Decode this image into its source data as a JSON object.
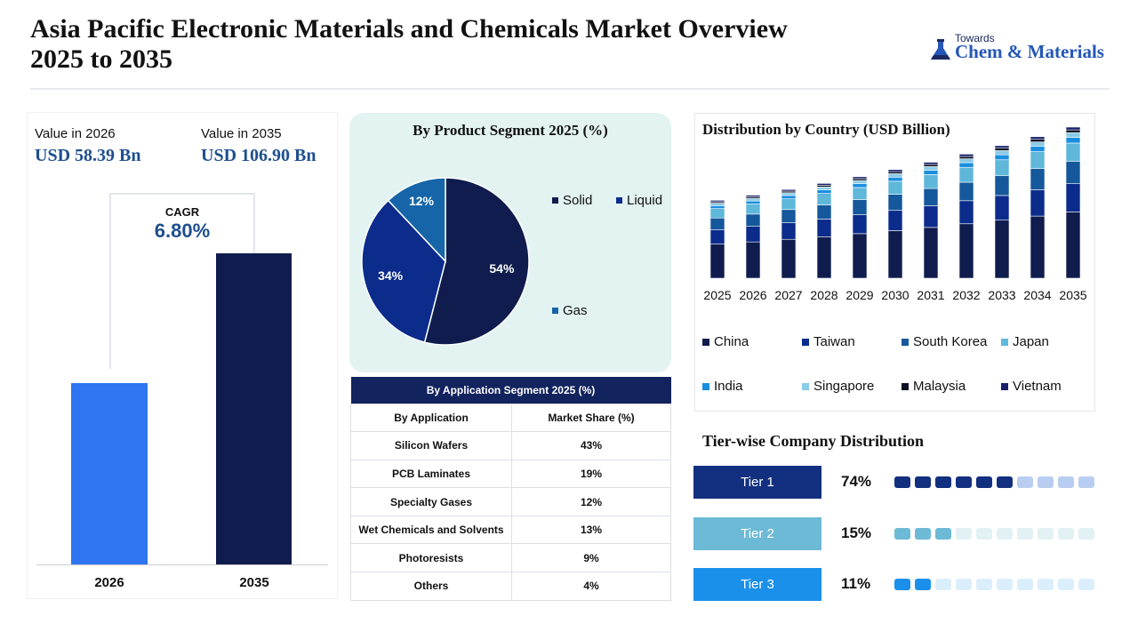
{
  "header": {
    "title_line1": "Asia Pacific Electronic Materials and Chemicals Market Overview",
    "title_line2": "2025 to 2035",
    "logo_small": "Towards",
    "logo_big": "Chem & Materials"
  },
  "value_panel": {
    "label_2026": "Value in 2026",
    "amount_2026": "USD 58.39 Bn",
    "label_2035": "Value in 2035",
    "amount_2035": "USD 106.90 Bn",
    "cagr_label": "CAGR",
    "cagr_value": "6.80%",
    "year_a": "2026",
    "year_b": "2035"
  },
  "product_panel": {
    "title": "By Product Segment 2025 (%)"
  },
  "application_table": {
    "title": "By Application Segment 2025 (%)",
    "col_app": "By Application",
    "col_share": "Market Share (%)",
    "rows": [
      {
        "app": "Silicon Wafers",
        "share": "43%"
      },
      {
        "app": "PCB Laminates",
        "share": "19%"
      },
      {
        "app": "Specialty Gases",
        "share": "12%"
      },
      {
        "app": "Wet Chemicals and Solvents",
        "share": "13%"
      },
      {
        "app": "Photoresists",
        "share": "9%"
      },
      {
        "app": "Others",
        "share": "4%"
      }
    ]
  },
  "country_panel": {
    "title": "Distribution by Country (USD Billion)"
  },
  "tier_panel": {
    "title": "Tier-wise Company Distribution",
    "tiers": [
      {
        "label": "Tier 1",
        "pct": "74%",
        "value": 0.74,
        "filled": 6,
        "color": "#12307f",
        "light": "#b9cdf0"
      },
      {
        "label": "Tier 2",
        "pct": "15%",
        "value": 0.15,
        "filled": 3,
        "color": "#6cbad6",
        "light": "#e1f1f4"
      },
      {
        "label": "Tier 3",
        "pct": "11%",
        "value": 0.11,
        "filled": 2,
        "color": "#1a90ea",
        "light": "#dbeefb"
      }
    ]
  },
  "colors": {
    "bar_2026": "#2f74f0",
    "bar_2035": "#0f1c4d",
    "accent_text": "#1e4f8f",
    "table_header": "#12235e"
  },
  "chart_data": [
    {
      "type": "bar",
      "title": "",
      "categories": [
        "2026",
        "2035"
      ],
      "values": [
        58.39,
        106.9
      ],
      "colors": [
        "#2f74f0",
        "#0f1c4d"
      ]
    },
    {
      "type": "pie",
      "title": "By Product Segment 2025 (%)",
      "labels": [
        "Solid",
        "Liquid",
        "Gas"
      ],
      "values": [
        54,
        34,
        12
      ],
      "data_labels": [
        "54%",
        "34%",
        "12%"
      ],
      "colors": [
        "#0f1c4d",
        "#0c2c8c",
        "#1565a8"
      ],
      "legend": "right"
    },
    {
      "type": "bar",
      "stacked": true,
      "title": "Distribution by Country (USD Billion)",
      "categories": [
        "2025",
        "2026",
        "2027",
        "2028",
        "2029",
        "2030",
        "2031",
        "2032",
        "2033",
        "2034",
        "2035"
      ],
      "legend": "bottom",
      "series": [
        {
          "name": "China",
          "color": "#0f1c4d",
          "values": [
            23.5,
            25.0,
            26.8,
            28.6,
            30.7,
            32.8,
            35.0,
            37.5,
            40.0,
            42.8,
            45.7
          ]
        },
        {
          "name": "Taiwan",
          "color": "#0c2c8c",
          "values": [
            10.0,
            10.7,
            11.4,
            12.2,
            13.0,
            13.9,
            14.9,
            15.9,
            17.0,
            18.2,
            19.4
          ]
        },
        {
          "name": "South Korea",
          "color": "#15589b",
          "values": [
            8.0,
            8.5,
            9.1,
            9.7,
            10.4,
            11.1,
            11.9,
            12.7,
            13.6,
            14.5,
            15.5
          ]
        },
        {
          "name": "Japan",
          "color": "#5fb7da",
          "values": [
            6.5,
            6.9,
            7.4,
            7.9,
            8.4,
            9.0,
            9.6,
            10.3,
            11.0,
            11.7,
            12.5
          ]
        },
        {
          "name": "India",
          "color": "#1a8fe0",
          "values": [
            2.0,
            2.1,
            2.3,
            2.4,
            2.6,
            2.8,
            3.0,
            3.2,
            3.4,
            3.6,
            3.9
          ]
        },
        {
          "name": "Singapore",
          "color": "#8ccbe6",
          "values": [
            1.7,
            1.8,
            1.9,
            2.1,
            2.2,
            2.4,
            2.5,
            2.7,
            2.9,
            3.1,
            3.3
          ]
        },
        {
          "name": "Malaysia",
          "color": "#0b0f22",
          "values": [
            1.0,
            1.1,
            1.1,
            1.2,
            1.3,
            1.4,
            1.5,
            1.6,
            1.7,
            1.8,
            1.9
          ]
        },
        {
          "name": "Vietnam",
          "color": "#16206b",
          "values": [
            1.0,
            1.1,
            1.1,
            1.2,
            1.3,
            1.4,
            1.5,
            1.6,
            1.7,
            1.8,
            1.9
          ]
        }
      ]
    }
  ]
}
